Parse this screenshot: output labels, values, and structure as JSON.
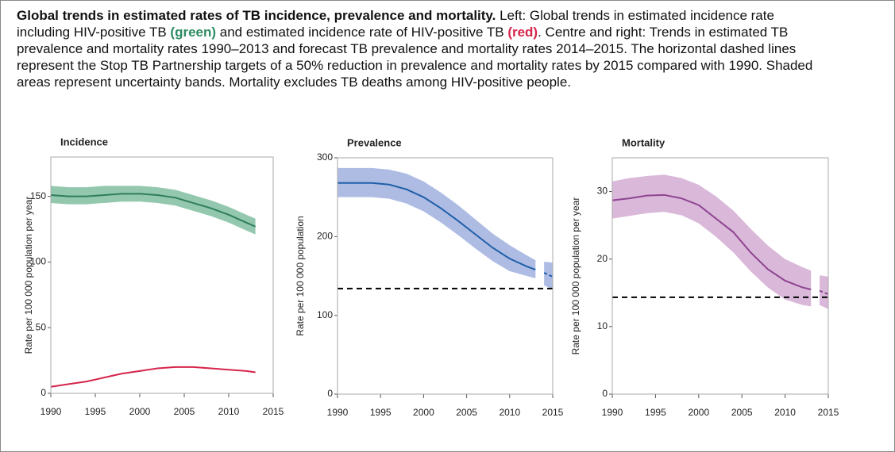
{
  "caption": {
    "title": "Global trends in estimated rates of TB incidence, prevalence and mortality.",
    "parts": [
      {
        "text": " Left: Global trends in estimated incidence rate including HIV-positive TB "
      },
      {
        "text": "(green)",
        "color": "#2e8b63"
      },
      {
        "text": " and estimated incidence rate of HIV-positive TB "
      },
      {
        "text": "(red)",
        "color": "#d6254a"
      },
      {
        "text": ". Centre and right: Trends in estimated TB prevalence and mortality rates 1990–2013 and forecast TB prevalence and mortality rates 2014–2015. The horizontal dashed lines represent the Stop TB Partnership targets of a 50% reduction in prevalence and mortality rates by 2015 compared with 1990. Shaded areas represent uncertainty bands. Mortality excludes TB deaths among HIV-positive people."
      }
    ]
  },
  "chart_data": [
    {
      "type": "line",
      "title": "Incidence",
      "y_label": "Rate per 100 000 population per year",
      "xlim": [
        1990,
        2015
      ],
      "xticks": [
        1990,
        1995,
        2000,
        2005,
        2010,
        2015
      ],
      "ylim": [
        0,
        180
      ],
      "yticks": [
        0,
        50,
        100,
        150
      ],
      "x": [
        1990,
        1992,
        1994,
        1996,
        1998,
        2000,
        2002,
        2004,
        2006,
        2008,
        2010,
        2012,
        2013
      ],
      "series": [
        {
          "color": "#2f7d5e",
          "band_color": "#93c8ae",
          "values": [
            151,
            150,
            150,
            151,
            152,
            152,
            151,
            149,
            145,
            141,
            136,
            130,
            127
          ],
          "upper": [
            158,
            157,
            157,
            158,
            158,
            158,
            157,
            155,
            151,
            147,
            142,
            136,
            133
          ],
          "lower": [
            145,
            144,
            144,
            145,
            146,
            146,
            145,
            143,
            139,
            135,
            130,
            124,
            121
          ]
        },
        {
          "color": "#d6254a",
          "values": [
            5,
            7,
            9,
            12,
            15,
            17,
            19,
            20,
            20,
            19,
            18,
            17,
            16
          ]
        }
      ]
    },
    {
      "type": "line",
      "title": "Prevalence",
      "y_label": "Rate per 100 000 population",
      "xlim": [
        1990,
        2015
      ],
      "xticks": [
        1990,
        1995,
        2000,
        2005,
        2010,
        2015
      ],
      "ylim": [
        0,
        300
      ],
      "yticks": [
        0,
        100,
        200,
        300
      ],
      "x": [
        1990,
        1992,
        1994,
        1996,
        1998,
        2000,
        2002,
        2004,
        2006,
        2008,
        2010,
        2012,
        2013
      ],
      "series": [
        {
          "color": "#1f5fa8",
          "band_color": "#aebce4",
          "values": [
            268,
            268,
            268,
            266,
            260,
            250,
            236,
            220,
            203,
            186,
            172,
            162,
            158
          ],
          "upper": [
            287,
            287,
            287,
            285,
            280,
            270,
            256,
            240,
            222,
            204,
            189,
            176,
            170
          ],
          "lower": [
            250,
            250,
            250,
            248,
            242,
            232,
            218,
            202,
            185,
            169,
            156,
            150,
            147
          ]
        }
      ],
      "forecast": {
        "x": [
          2014,
          2015
        ],
        "values": [
          154,
          149
        ],
        "upper": [
          168,
          167
        ],
        "lower": [
          138,
          133
        ]
      },
      "target": 134
    },
    {
      "type": "line",
      "title": "Mortality",
      "y_label": "Rate per 100 000 population per year",
      "xlim": [
        1990,
        2015
      ],
      "xticks": [
        1990,
        1995,
        2000,
        2005,
        2010,
        2015
      ],
      "ylim": [
        0,
        35
      ],
      "yticks": [
        0,
        10,
        20,
        30
      ],
      "x": [
        1990,
        1992,
        1994,
        1996,
        1998,
        2000,
        2002,
        2004,
        2006,
        2008,
        2010,
        2012,
        2013
      ],
      "series": [
        {
          "color": "#8e4491",
          "band_color": "#dab8d9",
          "values": [
            28.7,
            29,
            29.4,
            29.5,
            29,
            28,
            26,
            24,
            21,
            18.5,
            16.8,
            15.8,
            15.5
          ],
          "upper": [
            31.5,
            32,
            32.3,
            32.5,
            32,
            31,
            29.3,
            27.2,
            24.5,
            22,
            20,
            18.8,
            18.3
          ],
          "lower": [
            26,
            26.4,
            26.8,
            27,
            26.5,
            25.3,
            23.3,
            21,
            18.2,
            15.8,
            14,
            13.2,
            13
          ]
        }
      ],
      "forecast": {
        "x": [
          2014,
          2015
        ],
        "values": [
          15.3,
          14.8
        ],
        "upper": [
          17.6,
          17.4
        ],
        "lower": [
          13.2,
          12.6
        ]
      },
      "target": 14.35
    }
  ]
}
